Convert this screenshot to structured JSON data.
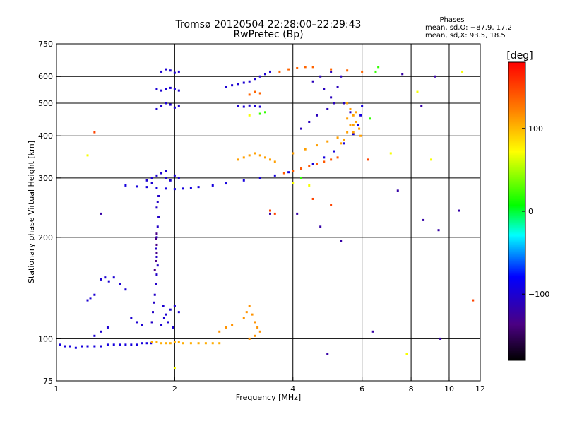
{
  "chart_data": {
    "type": "scatter",
    "title": "Tromsø 20120504 22:28:00–22:29:43",
    "subtitle": "RwPretec (Bp)",
    "xlabel": "Frequency [MHz]",
    "ylabel": "Stationary phase Virtual Height [km]",
    "x_scale": "log",
    "y_scale": "log",
    "xlim": [
      1,
      12
    ],
    "ylim": [
      75,
      750
    ],
    "x_ticks": [
      1,
      2,
      4,
      6,
      8,
      10,
      12
    ],
    "x_grid": [
      2,
      4,
      6,
      8,
      10
    ],
    "y_ticks": [
      75,
      100,
      200,
      300,
      400,
      500,
      600,
      750
    ],
    "y_grid": [
      100,
      200,
      300,
      400,
      500,
      600
    ],
    "grid": true,
    "stats": {
      "title": "Phases",
      "line_o": "mean, sd,O: −87.9, 17.2",
      "line_x": "mean, sd,X:  93.5, 18.5"
    },
    "colorbar": {
      "label": "[deg]",
      "range": [
        -180,
        180
      ],
      "ticks": [
        100,
        0,
        -100
      ],
      "placement": "right"
    },
    "series": [
      {
        "color_value": -95,
        "points": [
          [
            1.02,
            96
          ],
          [
            1.05,
            95
          ],
          [
            1.08,
            95
          ],
          [
            1.12,
            94
          ],
          [
            1.16,
            95
          ],
          [
            1.2,
            95
          ],
          [
            1.25,
            95
          ],
          [
            1.3,
            95
          ],
          [
            1.35,
            96
          ],
          [
            1.4,
            96
          ],
          [
            1.45,
            96
          ],
          [
            1.5,
            96
          ],
          [
            1.55,
            96
          ],
          [
            1.6,
            96
          ],
          [
            1.65,
            97
          ],
          [
            1.7,
            97
          ],
          [
            1.74,
            97
          ]
        ]
      },
      {
        "color_value": 105,
        "points": [
          [
            1.75,
            98
          ],
          [
            1.8,
            98
          ],
          [
            1.85,
            97
          ],
          [
            1.9,
            97
          ],
          [
            1.95,
            97
          ],
          [
            2.0,
            98
          ],
          [
            2.05,
            98
          ],
          [
            2.1,
            97
          ],
          [
            2.2,
            97
          ],
          [
            2.3,
            97
          ],
          [
            2.4,
            97
          ],
          [
            2.5,
            97
          ],
          [
            2.6,
            97
          ]
        ]
      },
      {
        "color_value": -105,
        "points": [
          [
            1.75,
            112
          ],
          [
            1.76,
            120
          ],
          [
            1.77,
            128
          ],
          [
            1.78,
            135
          ],
          [
            1.79,
            145
          ],
          [
            1.8,
            155
          ],
          [
            1.81,
            165
          ],
          [
            1.8,
            175
          ],
          [
            1.79,
            185
          ],
          [
            1.8,
            200
          ],
          [
            1.81,
            215
          ],
          [
            1.82,
            230
          ],
          [
            1.8,
            245
          ],
          [
            1.81,
            255
          ],
          [
            1.82,
            265
          ]
        ]
      },
      {
        "color_value": -135,
        "points": [
          [
            1.78,
            160
          ],
          [
            1.79,
            170
          ],
          [
            1.8,
            180
          ],
          [
            1.8,
            190
          ],
          [
            1.79,
            198
          ],
          [
            1.8,
            205
          ]
        ]
      },
      {
        "color_value": -100,
        "points": [
          [
            1.85,
            110
          ],
          [
            1.88,
            115
          ],
          [
            1.9,
            118
          ],
          [
            1.95,
            122
          ],
          [
            2.0,
            125
          ],
          [
            2.05,
            120
          ],
          [
            1.87,
            125
          ],
          [
            1.92,
            112
          ],
          [
            1.98,
            108
          ]
        ]
      },
      {
        "color_value": -95,
        "points": [
          [
            1.5,
            285
          ],
          [
            1.6,
            283
          ],
          [
            1.7,
            282
          ],
          [
            1.8,
            280
          ],
          [
            1.9,
            279
          ],
          [
            2.0,
            278
          ],
          [
            2.1,
            279
          ],
          [
            2.2,
            280
          ],
          [
            2.3,
            282
          ],
          [
            2.5,
            285
          ],
          [
            2.7,
            289
          ],
          [
            3.0,
            295
          ],
          [
            3.3,
            300
          ],
          [
            3.6,
            305
          ],
          [
            3.9,
            312
          ],
          [
            4.2,
            320
          ],
          [
            4.5,
            330
          ],
          [
            4.8,
            345
          ],
          [
            5.1,
            360
          ],
          [
            5.4,
            380
          ],
          [
            5.7,
            405
          ],
          [
            5.85,
            430
          ],
          [
            5.95,
            460
          ],
          [
            6.0,
            490
          ]
        ]
      },
      {
        "color_value": -100,
        "points": [
          [
            1.7,
            295
          ],
          [
            1.75,
            300
          ],
          [
            1.8,
            305
          ],
          [
            1.85,
            310
          ],
          [
            1.9,
            300
          ],
          [
            1.95,
            295
          ],
          [
            2.0,
            305
          ],
          [
            2.05,
            300
          ],
          [
            1.75,
            290
          ],
          [
            1.9,
            315
          ]
        ]
      },
      {
        "color_value": -100,
        "points": [
          [
            1.8,
            480
          ],
          [
            1.85,
            490
          ],
          [
            1.9,
            500
          ],
          [
            1.95,
            495
          ],
          [
            2.0,
            485
          ],
          [
            2.05,
            490
          ],
          [
            1.8,
            550
          ],
          [
            1.85,
            545
          ],
          [
            1.9,
            550
          ],
          [
            1.95,
            555
          ],
          [
            2.0,
            550
          ],
          [
            2.05,
            545
          ],
          [
            1.85,
            620
          ],
          [
            1.9,
            630
          ],
          [
            1.95,
            625
          ],
          [
            2.0,
            615
          ],
          [
            2.05,
            620
          ]
        ]
      },
      {
        "color_value": -100,
        "points": [
          [
            2.9,
            490
          ],
          [
            3.0,
            488
          ],
          [
            3.1,
            492
          ],
          [
            3.2,
            490
          ],
          [
            3.3,
            488
          ],
          [
            2.7,
            560
          ],
          [
            2.8,
            565
          ],
          [
            2.9,
            570
          ],
          [
            3.0,
            575
          ],
          [
            3.1,
            580
          ],
          [
            3.2,
            590
          ],
          [
            3.3,
            600
          ],
          [
            3.4,
            610
          ],
          [
            3.5,
            620
          ]
        ]
      },
      {
        "color_value": 110,
        "points": [
          [
            2.9,
            340
          ],
          [
            3.0,
            345
          ],
          [
            3.1,
            350
          ],
          [
            3.2,
            355
          ],
          [
            3.3,
            350
          ],
          [
            3.4,
            345
          ],
          [
            3.5,
            340
          ],
          [
            3.6,
            335
          ],
          [
            4.0,
            355
          ],
          [
            4.3,
            365
          ],
          [
            4.6,
            375
          ],
          [
            4.9,
            385
          ],
          [
            5.2,
            395
          ],
          [
            5.5,
            410
          ],
          [
            5.7,
            430
          ]
        ]
      },
      {
        "color_value": 140,
        "points": [
          [
            3.8,
            310
          ],
          [
            4.0,
            315
          ],
          [
            4.2,
            320
          ],
          [
            4.4,
            325
          ],
          [
            4.6,
            330
          ],
          [
            4.8,
            335
          ],
          [
            5.0,
            340
          ],
          [
            5.2,
            345
          ]
        ]
      },
      {
        "color_value": 135,
        "points": [
          [
            3.7,
            620
          ],
          [
            3.9,
            630
          ],
          [
            4.1,
            635
          ],
          [
            4.3,
            640
          ],
          [
            4.5,
            640
          ],
          [
            5.0,
            630
          ],
          [
            5.5,
            625
          ],
          [
            6.0,
            620
          ],
          [
            3.1,
            530
          ],
          [
            3.2,
            540
          ],
          [
            3.3,
            535
          ]
        ]
      },
      {
        "color_value": 115,
        "points": [
          [
            2.6,
            105
          ],
          [
            2.7,
            108
          ],
          [
            2.8,
            110
          ],
          [
            3.0,
            115
          ],
          [
            3.05,
            120
          ],
          [
            3.1,
            125
          ],
          [
            3.15,
            118
          ],
          [
            3.2,
            112
          ],
          [
            3.25,
            108
          ],
          [
            3.3,
            105
          ],
          [
            3.1,
            100
          ],
          [
            3.2,
            102
          ]
        ]
      },
      {
        "color_value": -100,
        "points": [
          [
            1.2,
            130
          ],
          [
            1.22,
            132
          ],
          [
            1.25,
            135
          ],
          [
            1.3,
            150
          ],
          [
            1.33,
            152
          ],
          [
            1.36,
            148
          ],
          [
            1.4,
            152
          ],
          [
            1.45,
            145
          ],
          [
            1.5,
            140
          ],
          [
            1.55,
            115
          ],
          [
            1.6,
            112
          ],
          [
            1.65,
            110
          ],
          [
            1.25,
            102
          ],
          [
            1.3,
            105
          ],
          [
            1.35,
            108
          ]
        ]
      },
      {
        "color_value": -110,
        "points": [
          [
            4.8,
            550
          ],
          [
            5.0,
            520
          ],
          [
            5.2,
            560
          ],
          [
            5.4,
            500
          ],
          [
            5.6,
            470
          ],
          [
            4.5,
            580
          ],
          [
            4.7,
            600
          ],
          [
            5.0,
            620
          ],
          [
            5.3,
            600
          ],
          [
            4.2,
            420
          ],
          [
            4.4,
            440
          ],
          [
            4.6,
            460
          ],
          [
            4.9,
            480
          ],
          [
            5.1,
            500
          ]
        ]
      },
      {
        "color_value": 110,
        "points": [
          [
            5.5,
            500
          ],
          [
            5.6,
            480
          ],
          [
            5.7,
            460
          ],
          [
            5.8,
            440
          ],
          [
            5.9,
            420
          ],
          [
            5.95,
            400
          ],
          [
            5.5,
            450
          ],
          [
            5.6,
            430
          ],
          [
            5.7,
            410
          ],
          [
            5.4,
            390
          ],
          [
            5.3,
            380
          ],
          [
            5.8,
            470
          ]
        ]
      },
      {
        "color_value": 20,
        "points": [
          [
            3.3,
            465
          ],
          [
            3.4,
            470
          ],
          [
            6.5,
            620
          ],
          [
            6.6,
            640
          ],
          [
            4.2,
            300
          ],
          [
            6.3,
            450
          ]
        ]
      },
      {
        "color_value": 150,
        "points": [
          [
            3.5,
            240
          ],
          [
            3.6,
            235
          ],
          [
            4.5,
            260
          ],
          [
            5.0,
            250
          ],
          [
            6.2,
            340
          ],
          [
            11.5,
            130
          ],
          [
            1.25,
            410
          ]
        ]
      },
      {
        "color_value": -120,
        "points": [
          [
            1.3,
            235
          ],
          [
            4.1,
            235
          ],
          [
            4.7,
            215
          ],
          [
            5.3,
            195
          ],
          [
            6.4,
            105
          ],
          [
            7.4,
            275
          ],
          [
            8.6,
            225
          ],
          [
            9.4,
            210
          ],
          [
            10.6,
            240
          ],
          [
            9.5,
            100
          ],
          [
            9.2,
            600
          ],
          [
            7.6,
            610
          ],
          [
            4.9,
            90
          ],
          [
            8.5,
            490
          ],
          [
            3.5,
            235
          ]
        ]
      },
      {
        "color_value": 70,
        "points": [
          [
            1.2,
            350
          ],
          [
            3.1,
            460
          ],
          [
            4.0,
            290
          ],
          [
            4.4,
            285
          ],
          [
            7.1,
            355
          ],
          [
            9.0,
            340
          ],
          [
            8.3,
            540
          ],
          [
            10.8,
            620
          ],
          [
            7.8,
            90
          ],
          [
            2.0,
            82
          ]
        ]
      }
    ]
  }
}
